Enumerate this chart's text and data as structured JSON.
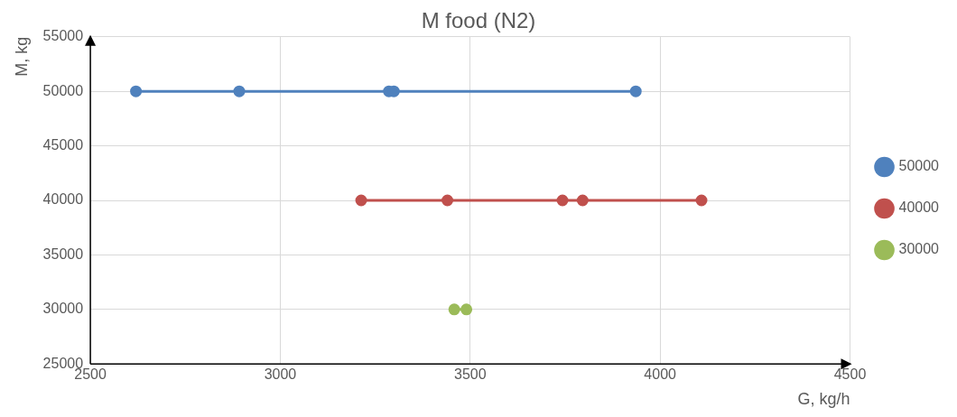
{
  "chart_data": {
    "type": "line",
    "title": "M food (N2)",
    "xlabel": "G, kg/h",
    "ylabel": "M, kg",
    "xlim": [
      2500,
      4500
    ],
    "xticks": [
      2500,
      3000,
      3500,
      4000,
      4500
    ],
    "ylim": [
      25000,
      55000
    ],
    "yticks": [
      25000,
      30000,
      35000,
      40000,
      45000,
      50000,
      55000
    ],
    "grid": true,
    "legend": "right",
    "marker": "circle",
    "line_style": "solid",
    "series": [
      {
        "name": "50000",
        "color": "#4f81bd",
        "x": [
          2620,
          2892,
          3286,
          3299,
          3936
        ],
        "values": [
          50000,
          50000,
          50000,
          50000,
          50000
        ]
      },
      {
        "name": "40000",
        "color": "#c0504d",
        "x": [
          3213,
          3440,
          3743,
          3796,
          4109
        ],
        "values": [
          40000,
          40000,
          40000,
          40000,
          40000
        ]
      },
      {
        "name": "30000",
        "color": "#9bbb59",
        "x": [
          3458,
          3490
        ],
        "values": [
          30000,
          30000
        ]
      }
    ]
  }
}
